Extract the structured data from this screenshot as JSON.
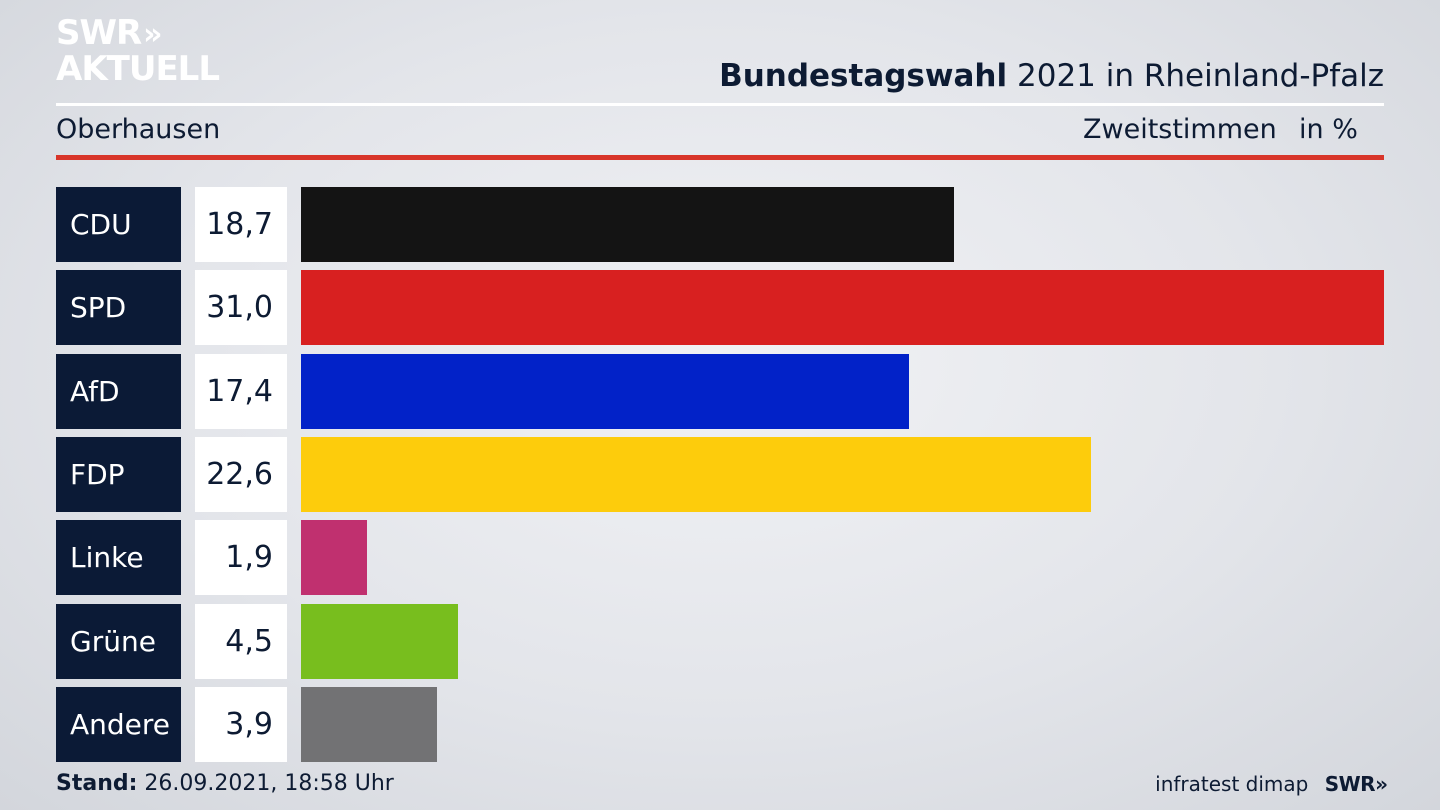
{
  "brand": {
    "logo_line1": "SWR",
    "logo_arrows": "»",
    "logo_line2": "AKTUELL"
  },
  "header": {
    "title_bold": "Bundestagswahl",
    "title_rest": "2021 in Rheinland-Pfalz",
    "region": "Oberhausen",
    "measure": "Zweitstimmen",
    "unit": "in %"
  },
  "chart_data": {
    "type": "bar",
    "orientation": "horizontal",
    "categories": [
      "CDU",
      "SPD",
      "AfD",
      "FDP",
      "Linke",
      "Grüne",
      "Andere"
    ],
    "values": [
      18.7,
      31.0,
      17.4,
      22.6,
      1.9,
      4.5,
      3.9
    ],
    "value_labels": [
      "18,7",
      "31,0",
      "17,4",
      "22,6",
      "1,9",
      "4,5",
      "3,9"
    ],
    "colors": [
      "#141414",
      "#d82020",
      "#0222c8",
      "#fdcc0c",
      "#c0306f",
      "#78be1e",
      "#727274"
    ],
    "xlim": [
      0,
      31.0
    ],
    "grid": false,
    "legend": "none"
  },
  "footer": {
    "stand_label": "Stand:",
    "stand_value": "26.09.2021, 18:58 Uhr",
    "source": "infratest dimap",
    "broadcaster": "SWR",
    "broadcaster_arrows": "»"
  }
}
